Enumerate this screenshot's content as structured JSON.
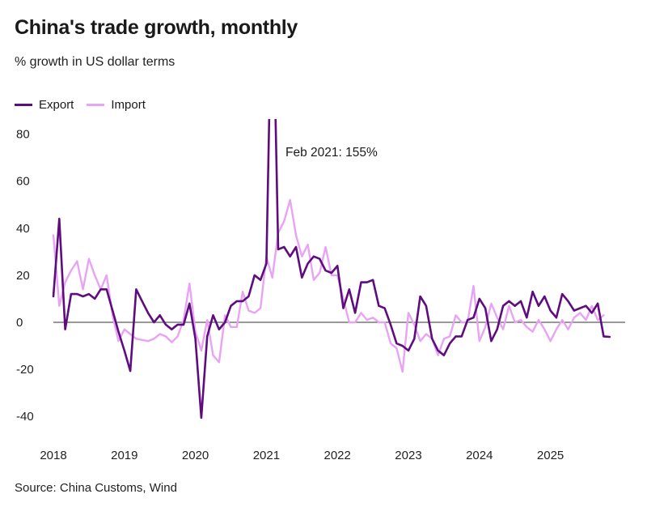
{
  "header": {
    "title": "China's trade growth, monthly",
    "subtitle": "% growth in US dollar terms"
  },
  "footer": {
    "source": "Source: China Customs, Wind"
  },
  "colors": {
    "export": "#5e0c7e",
    "import": "#e9a3f5",
    "zero_line": "#333333"
  },
  "chart_data": {
    "type": "line",
    "title": "China's trade growth, monthly",
    "subtitle": "% growth in US dollar terms",
    "xlabel": "",
    "ylabel": "",
    "x_start": "2018-01",
    "x_unit": "month",
    "xlim": [
      2018.0,
      2025.95
    ],
    "ylim": [
      -50,
      86
    ],
    "y_ticks": [
      -40,
      -20,
      0,
      20,
      40,
      60,
      80
    ],
    "y_tick_labels": [
      "-40",
      "-20",
      "0",
      "20",
      "40",
      "60",
      "80"
    ],
    "x_ticks": [
      2018,
      2019,
      2020,
      2021,
      2022,
      2023,
      2024,
      2025
    ],
    "x_tick_labels": [
      "2018",
      "2019",
      "2020",
      "2021",
      "2022",
      "2023",
      "2024",
      "2025"
    ],
    "grid": false,
    "legend": {
      "position": "top-left",
      "entries": [
        "Export",
        "Import"
      ]
    },
    "series": [
      {
        "name": "Export",
        "values": [
          11,
          44,
          -3,
          12,
          12,
          11,
          12,
          10,
          14,
          14,
          5,
          -4,
          -12,
          -20.7,
          14,
          9,
          4,
          0,
          3,
          -1,
          -3,
          -1,
          -1,
          8,
          -7,
          -40.6,
          -6,
          3,
          -3,
          0,
          7,
          9,
          9,
          11,
          20,
          18,
          25,
          155,
          31,
          32,
          28,
          32,
          19,
          25,
          28,
          27,
          22,
          21,
          24,
          6,
          14,
          4,
          17,
          17,
          18,
          7,
          6,
          -1,
          -9,
          -10,
          -12,
          -7,
          11,
          7,
          -7,
          -12,
          -14,
          -9,
          -6,
          -6,
          1,
          2,
          10,
          6,
          -8,
          -3,
          7,
          9,
          7,
          9,
          2,
          13,
          7,
          11,
          5,
          2,
          12,
          9,
          5,
          6,
          7,
          4,
          8,
          -6,
          -6.2
        ],
        "annotation": "Feb 2021: 155%"
      },
      {
        "name": "Import",
        "values": [
          37,
          7,
          17,
          22,
          26,
          14,
          27,
          20,
          14,
          20,
          3,
          -8,
          -3,
          -5,
          -7,
          -7.5,
          -8,
          -7,
          -5,
          -6,
          -8.5,
          -6,
          1,
          16.5,
          -4,
          -12,
          1,
          -14,
          -17,
          3,
          -2,
          -2,
          13,
          5,
          4,
          6,
          28,
          19,
          38,
          43,
          52,
          37,
          28,
          33,
          18,
          21,
          32,
          20,
          20,
          10,
          0,
          0,
          4,
          1,
          2,
          0,
          0,
          -9,
          -11,
          -21,
          4,
          -1,
          -8,
          -5,
          -7,
          -14,
          -7,
          -6,
          3,
          0,
          0,
          15.5,
          -8,
          -2,
          8,
          2,
          -3,
          7,
          0,
          1,
          -2,
          -4,
          1,
          -3,
          -8,
          -3,
          1,
          -3,
          2,
          4,
          1,
          7,
          1,
          3
        ]
      }
    ]
  }
}
